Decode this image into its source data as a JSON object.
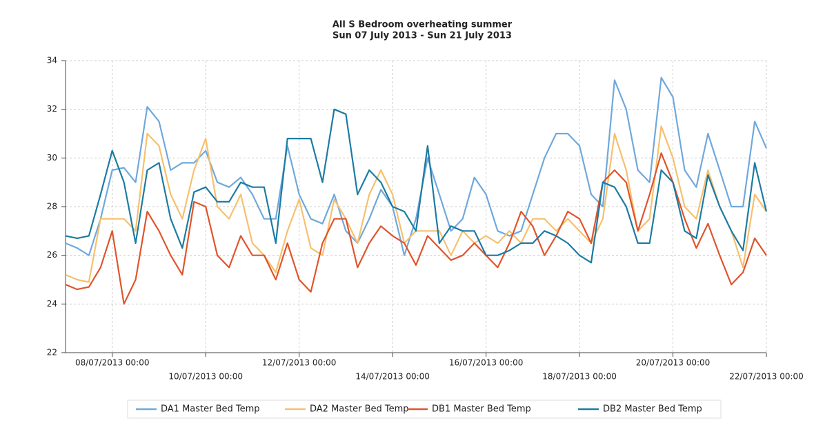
{
  "chart_data": {
    "type": "line",
    "title": "All S Bedroom overheating summer",
    "subtitle": "Sun 07 July 2013 - Sun 21 July 2013",
    "x": [
      "07/07/2013 00:00",
      "07/07/2013 06:00",
      "07/07/2013 12:00",
      "07/07/2013 18:00",
      "08/07/2013 00:00",
      "08/07/2013 06:00",
      "08/07/2013 12:00",
      "08/07/2013 18:00",
      "09/07/2013 00:00",
      "09/07/2013 06:00",
      "09/07/2013 12:00",
      "09/07/2013 18:00",
      "10/07/2013 00:00",
      "10/07/2013 06:00",
      "10/07/2013 12:00",
      "10/07/2013 18:00",
      "11/07/2013 00:00",
      "11/07/2013 06:00",
      "11/07/2013 12:00",
      "11/07/2013 18:00",
      "12/07/2013 00:00",
      "12/07/2013 06:00",
      "12/07/2013 12:00",
      "12/07/2013 18:00",
      "13/07/2013 00:00",
      "13/07/2013 06:00",
      "13/07/2013 12:00",
      "13/07/2013 18:00",
      "14/07/2013 00:00",
      "14/07/2013 06:00",
      "14/07/2013 12:00",
      "14/07/2013 18:00",
      "15/07/2013 00:00",
      "15/07/2013 06:00",
      "15/07/2013 12:00",
      "15/07/2013 18:00",
      "16/07/2013 00:00",
      "16/07/2013 06:00",
      "16/07/2013 12:00",
      "16/07/2013 18:00",
      "17/07/2013 00:00",
      "17/07/2013 06:00",
      "17/07/2013 12:00",
      "17/07/2013 18:00",
      "18/07/2013 00:00",
      "18/07/2013 06:00",
      "18/07/2013 12:00",
      "18/07/2013 18:00",
      "19/07/2013 00:00",
      "19/07/2013 06:00",
      "19/07/2013 12:00",
      "19/07/2013 18:00",
      "20/07/2013 00:00",
      "20/07/2013 06:00",
      "20/07/2013 12:00",
      "20/07/2013 18:00",
      "21/07/2013 00:00",
      "21/07/2013 06:00",
      "21/07/2013 12:00",
      "21/07/2013 18:00",
      "22/07/2013 00:00"
    ],
    "series": [
      {
        "name": "DA1 Master Bed Temp",
        "color": "#6fa8dc",
        "values": [
          26.5,
          26.3,
          26.0,
          27.5,
          29.5,
          29.6,
          29.0,
          32.1,
          31.5,
          29.5,
          29.8,
          29.8,
          30.3,
          29.0,
          28.8,
          29.2,
          28.5,
          27.5,
          27.5,
          30.5,
          28.5,
          27.5,
          27.3,
          28.5,
          27.0,
          26.5,
          27.5,
          28.7,
          28.0,
          26.0,
          27.5,
          30.0,
          28.5,
          27.0,
          27.5,
          29.2,
          28.5,
          27.0,
          26.8,
          27.0,
          28.5,
          30.0,
          31.0,
          31.0,
          30.5,
          28.5,
          28.0,
          33.2,
          32.0,
          29.5,
          29.0,
          33.3,
          32.5,
          29.5,
          28.8,
          31.0,
          29.5,
          28.0,
          28.0,
          31.5,
          30.4
        ]
      },
      {
        "name": "DA2 Master Bed Temp",
        "color": "#f6c06e",
        "values": [
          25.2,
          25.0,
          24.9,
          27.5,
          27.5,
          27.5,
          27.0,
          31.0,
          30.5,
          28.5,
          27.5,
          29.5,
          30.8,
          28.0,
          27.5,
          28.5,
          26.5,
          26.0,
          25.3,
          27.0,
          28.3,
          26.3,
          26.0,
          28.3,
          27.5,
          26.5,
          28.5,
          29.5,
          28.5,
          26.5,
          27.0,
          27.0,
          27.0,
          26.0,
          27.0,
          26.5,
          26.8,
          26.5,
          27.0,
          26.5,
          27.5,
          27.5,
          27.0,
          27.5,
          27.0,
          26.5,
          27.5,
          31.0,
          29.5,
          27.0,
          27.5,
          31.3,
          30.0,
          28.0,
          27.5,
          29.5,
          28.0,
          27.0,
          25.5,
          28.5,
          27.8
        ]
      },
      {
        "name": "DB1 Master Bed Temp",
        "color": "#e0542b",
        "values": [
          24.8,
          24.6,
          24.7,
          25.5,
          27.0,
          24.0,
          25.0,
          27.8,
          27.0,
          26.0,
          25.2,
          28.2,
          28.0,
          26.0,
          25.5,
          26.8,
          26.0,
          26.0,
          25.0,
          26.5,
          25.0,
          24.5,
          26.5,
          27.5,
          27.5,
          25.5,
          26.5,
          27.2,
          26.8,
          26.5,
          25.6,
          26.8,
          26.3,
          25.8,
          26.0,
          26.5,
          26.0,
          25.5,
          26.5,
          27.8,
          27.2,
          26.0,
          26.8,
          27.8,
          27.5,
          26.5,
          29.0,
          29.5,
          29.0,
          27.0,
          28.5,
          30.2,
          29.0,
          27.5,
          26.3,
          27.3,
          26.0,
          24.8,
          25.3,
          26.7,
          26.0
        ]
      },
      {
        "name": "DB2 Master Bed Temp",
        "color": "#1c7ba3",
        "values": [
          26.8,
          26.7,
          26.8,
          28.5,
          30.3,
          29.0,
          26.5,
          29.5,
          29.8,
          27.5,
          26.3,
          28.6,
          28.8,
          28.2,
          28.2,
          29.0,
          28.8,
          28.8,
          26.5,
          30.8,
          30.8,
          30.8,
          29.0,
          32.0,
          31.8,
          28.5,
          29.5,
          29.0,
          28.0,
          27.8,
          27.0,
          30.5,
          26.5,
          27.2,
          27.0,
          27.0,
          26.0,
          26.0,
          26.2,
          26.5,
          26.5,
          27.0,
          26.8,
          26.5,
          26.0,
          25.7,
          29.0,
          28.8,
          28.0,
          26.5,
          26.5,
          29.5,
          29.0,
          27.0,
          26.7,
          29.3,
          28.0,
          27.0,
          26.2,
          29.8,
          27.8
        ]
      }
    ],
    "xlim": [
      "07/07/2013 00:00",
      "22/07/2013 00:00"
    ],
    "xticks": [
      "08/07/2013 00:00",
      "10/07/2013 00:00",
      "12/07/2013 00:00",
      "14/07/2013 00:00",
      "16/07/2013 00:00",
      "18/07/2013 00:00",
      "20/07/2013 00:00",
      "22/07/2013 00:00"
    ],
    "ylim": [
      22,
      34
    ],
    "yticks": [
      22,
      24,
      26,
      28,
      30,
      32,
      34
    ],
    "grid": true
  }
}
